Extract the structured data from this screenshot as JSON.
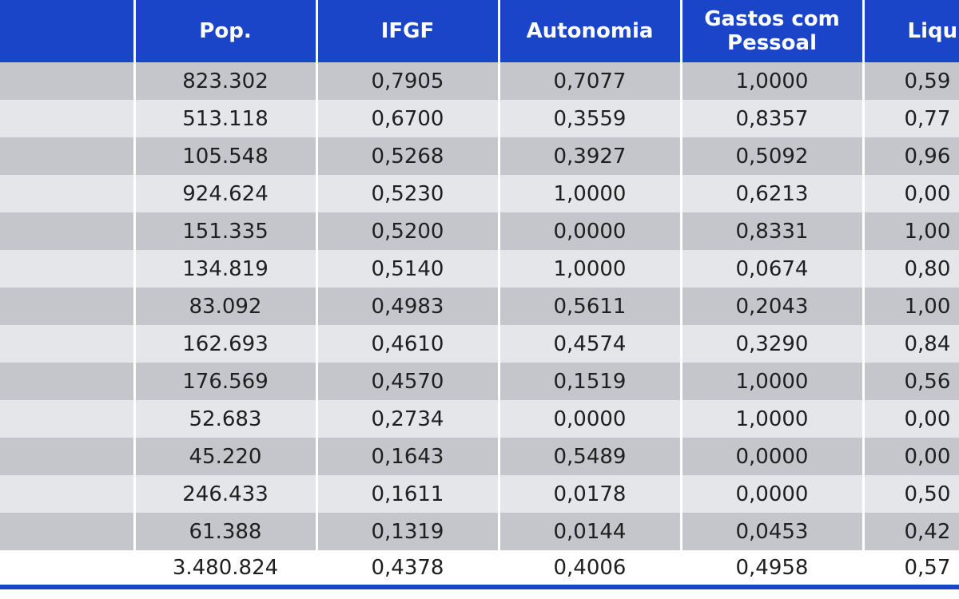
{
  "table": {
    "headers": {
      "pop": "Pop.",
      "ifgf": "IFGF",
      "autonomia": "Autonomia",
      "gastos_line1": "Gastos com",
      "gastos_line2": "Pessoal",
      "liquidez": "Liqui"
    },
    "rows": [
      {
        "pop": "823.302",
        "ifgf": "0,7905",
        "autonomia": "0,7077",
        "gastos": "1,0000",
        "liquidez": "0,59"
      },
      {
        "pop": "513.118",
        "ifgf": "0,6700",
        "autonomia": "0,3559",
        "gastos": "0,8357",
        "liquidez": "0,77"
      },
      {
        "pop": "105.548",
        "ifgf": "0,5268",
        "autonomia": "0,3927",
        "gastos": "0,5092",
        "liquidez": "0,96"
      },
      {
        "pop": "924.624",
        "ifgf": "0,5230",
        "autonomia": "1,0000",
        "gastos": "0,6213",
        "liquidez": "0,00"
      },
      {
        "pop": "151.335",
        "ifgf": "0,5200",
        "autonomia": "0,0000",
        "gastos": "0,8331",
        "liquidez": "1,00"
      },
      {
        "pop": "134.819",
        "ifgf": "0,5140",
        "autonomia": "1,0000",
        "gastos": "0,0674",
        "liquidez": "0,80"
      },
      {
        "pop": "83.092",
        "ifgf": "0,4983",
        "autonomia": "0,5611",
        "gastos": "0,2043",
        "liquidez": "1,00"
      },
      {
        "pop": "162.693",
        "ifgf": "0,4610",
        "autonomia": "0,4574",
        "gastos": "0,3290",
        "liquidez": "0,84"
      },
      {
        "pop": "176.569",
        "ifgf": "0,4570",
        "autonomia": "0,1519",
        "gastos": "1,0000",
        "liquidez": "0,56"
      },
      {
        "pop": "52.683",
        "ifgf": "0,2734",
        "autonomia": "0,0000",
        "gastos": "1,0000",
        "liquidez": "0,00"
      },
      {
        "pop": "45.220",
        "ifgf": "0,1643",
        "autonomia": "0,5489",
        "gastos": "0,0000",
        "liquidez": "0,00"
      },
      {
        "pop": "246.433",
        "ifgf": "0,1611",
        "autonomia": "0,0178",
        "gastos": "0,0000",
        "liquidez": "0,50"
      },
      {
        "pop": "61.388",
        "ifgf": "0,1319",
        "autonomia": "0,0144",
        "gastos": "0,0453",
        "liquidez": "0,42"
      }
    ],
    "total": {
      "pop": "3.480.824",
      "ifgf": "0,4378",
      "autonomia": "0,4006",
      "gastos": "0,4958",
      "liquidez": "0,57"
    }
  },
  "colors": {
    "header_bg": "#1a45c9",
    "header_text": "#ffffff",
    "row_dark": "#c4c6cb",
    "row_light": "#e5e6e9",
    "total_row_bg": "#ffffff"
  }
}
